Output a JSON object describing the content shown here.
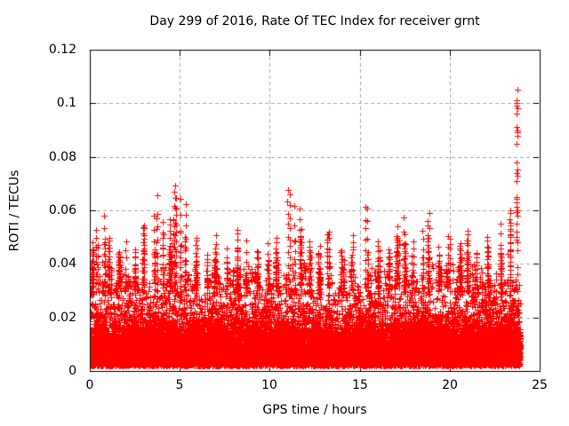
{
  "page": {
    "background": "#ffffff"
  },
  "chart_data": {
    "type": "scatter",
    "title": "Day 299 of 2016, Rate Of TEC Index for receiver grnt",
    "xlabel": "GPS time / hours",
    "ylabel": "ROTI / TECUs",
    "xlim": [
      0,
      25
    ],
    "ylim": [
      0,
      0.12
    ],
    "xticks": [
      0,
      5,
      10,
      15,
      20,
      25
    ],
    "xtick_labels": [
      "0",
      "5",
      "10",
      "15",
      "20",
      "25"
    ],
    "yticks": [
      0,
      0.02,
      0.04,
      0.06,
      0.08,
      0.1,
      0.12
    ],
    "ytick_labels": [
      "0",
      "0.02",
      "0.04",
      "0.06",
      "0.08",
      "0.1",
      "0.12"
    ],
    "marker": "+",
    "marker_color": "#ff0000",
    "axis_color": "#000000",
    "grid": {
      "visible": true,
      "style": "dashed",
      "color": "#a8a8a8",
      "on_xticks": [
        5,
        10,
        15,
        20
      ],
      "on_yticks": [
        0.02,
        0.04,
        0.06,
        0.08,
        0.1
      ]
    },
    "legend": null,
    "data_extent_hours": [
      0,
      23.92
    ],
    "dense_band": {
      "description": "continuous dense cloud of ROTI values for all visible satellites, 30 s epochs",
      "y_floor": 0.002,
      "core_sigma": 0.0075,
      "mid_fraction": 0.22,
      "mid_top_base": 0.026,
      "mid_top_noise": 0.016,
      "epoch_step_hours": 0.0083333,
      "points_per_epoch_min": 5,
      "points_per_epoch_max": 9
    },
    "spikes": [
      [
        0.15,
        0.048
      ],
      [
        0.35,
        0.053
      ],
      [
        0.8,
        0.057
      ],
      [
        1.1,
        0.05
      ],
      [
        1.6,
        0.044
      ],
      [
        2.0,
        0.048
      ],
      [
        2.5,
        0.046
      ],
      [
        3.0,
        0.055
      ],
      [
        3.55,
        0.058
      ],
      [
        3.75,
        0.065
      ],
      [
        4.05,
        0.055
      ],
      [
        4.45,
        0.057
      ],
      [
        4.75,
        0.07
      ],
      [
        5.05,
        0.065
      ],
      [
        5.35,
        0.062
      ],
      [
        5.9,
        0.05
      ],
      [
        6.5,
        0.044
      ],
      [
        7.0,
        0.05
      ],
      [
        7.6,
        0.046
      ],
      [
        8.2,
        0.053
      ],
      [
        8.7,
        0.048
      ],
      [
        9.3,
        0.045
      ],
      [
        9.9,
        0.047
      ],
      [
        10.4,
        0.05
      ],
      [
        11.0,
        0.068
      ],
      [
        11.35,
        0.062
      ],
      [
        11.65,
        0.06
      ],
      [
        12.2,
        0.048
      ],
      [
        12.8,
        0.046
      ],
      [
        13.3,
        0.052
      ],
      [
        14.0,
        0.046
      ],
      [
        14.6,
        0.05
      ],
      [
        15.4,
        0.061
      ],
      [
        16.0,
        0.048
      ],
      [
        16.6,
        0.046
      ],
      [
        17.1,
        0.054
      ],
      [
        17.45,
        0.058
      ],
      [
        18.0,
        0.048
      ],
      [
        18.5,
        0.052
      ],
      [
        18.85,
        0.058
      ],
      [
        19.4,
        0.046
      ],
      [
        19.9,
        0.05
      ],
      [
        20.6,
        0.048
      ],
      [
        21.0,
        0.053
      ],
      [
        21.5,
        0.045
      ],
      [
        22.1,
        0.05
      ],
      [
        22.85,
        0.055
      ],
      [
        23.35,
        0.06
      ]
    ],
    "outlier_column": {
      "x": 23.75,
      "values": [
        0.045,
        0.048,
        0.05,
        0.052,
        0.055,
        0.058,
        0.06,
        0.063,
        0.065,
        0.071,
        0.073,
        0.074,
        0.078,
        0.085,
        0.088,
        0.09,
        0.096,
        0.098,
        0.1,
        0.105
      ]
    }
  }
}
